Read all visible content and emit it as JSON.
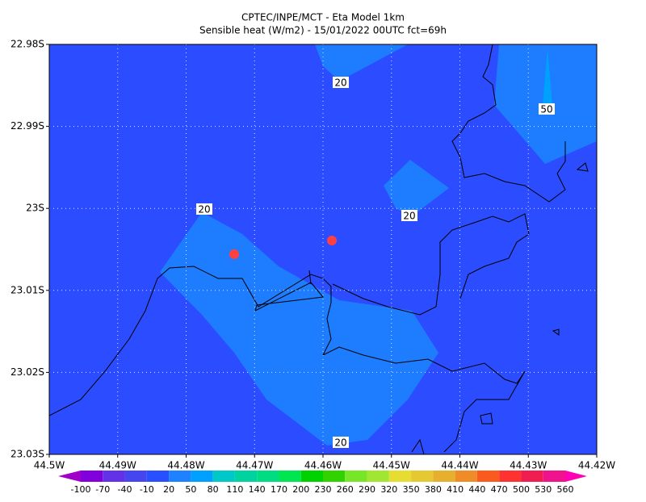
{
  "title": [
    "CPTEC/INPE/MCT -  Eta Model 1km",
    "Sensible heat (W/m2) - 15/01/2022 00UTC fct=69h"
  ],
  "map": {
    "latlim": [
      22.98,
      23.03
    ],
    "lonlim": [
      44.5,
      44.42
    ],
    "latticks": [
      {
        "value": 22.98,
        "label": "22.98S"
      },
      {
        "value": 22.99,
        "label": "22.99S"
      },
      {
        "value": 23,
        "label": "23S"
      },
      {
        "value": 23.01,
        "label": "23.01S"
      },
      {
        "value": 23.02,
        "label": "23.02S"
      },
      {
        "value": 23.03,
        "label": "23.03S"
      }
    ],
    "lonticks": [
      {
        "value": 44.5,
        "label": "44.5W"
      },
      {
        "value": 44.49,
        "label": "44.49W"
      },
      {
        "value": 44.48,
        "label": "44.48W"
      },
      {
        "value": 44.47,
        "label": "44.47W"
      },
      {
        "value": 44.46,
        "label": "44.46W"
      },
      {
        "value": 44.45,
        "label": "44.45W"
      },
      {
        "value": 44.44,
        "label": "44.44W"
      },
      {
        "value": 44.43,
        "label": "44.43W"
      },
      {
        "value": 44.42,
        "label": "44.42W"
      }
    ],
    "contour_labels": [
      20,
      20,
      20,
      20,
      50
    ]
  },
  "colorbar": {
    "levels": [
      -100,
      -70,
      -40,
      -10,
      20,
      50,
      80,
      110,
      140,
      170,
      200,
      230,
      260,
      290,
      320,
      350,
      380,
      410,
      440,
      470,
      500,
      530,
      560
    ],
    "colors": [
      "#a000c8",
      "#8200dc",
      "#6432e6",
      "#4646f0",
      "#2850ff",
      "#1e82ff",
      "#00a0ff",
      "#00c8c8",
      "#00d2a0",
      "#00dc82",
      "#00e650",
      "#00d200",
      "#32d200",
      "#78e628",
      "#a0e632",
      "#e6dc32",
      "#e6c832",
      "#e6af2d",
      "#f08c28",
      "#fa5a1e",
      "#ff3232",
      "#f01e50",
      "#f0148c",
      "#ff00b4"
    ]
  }
}
